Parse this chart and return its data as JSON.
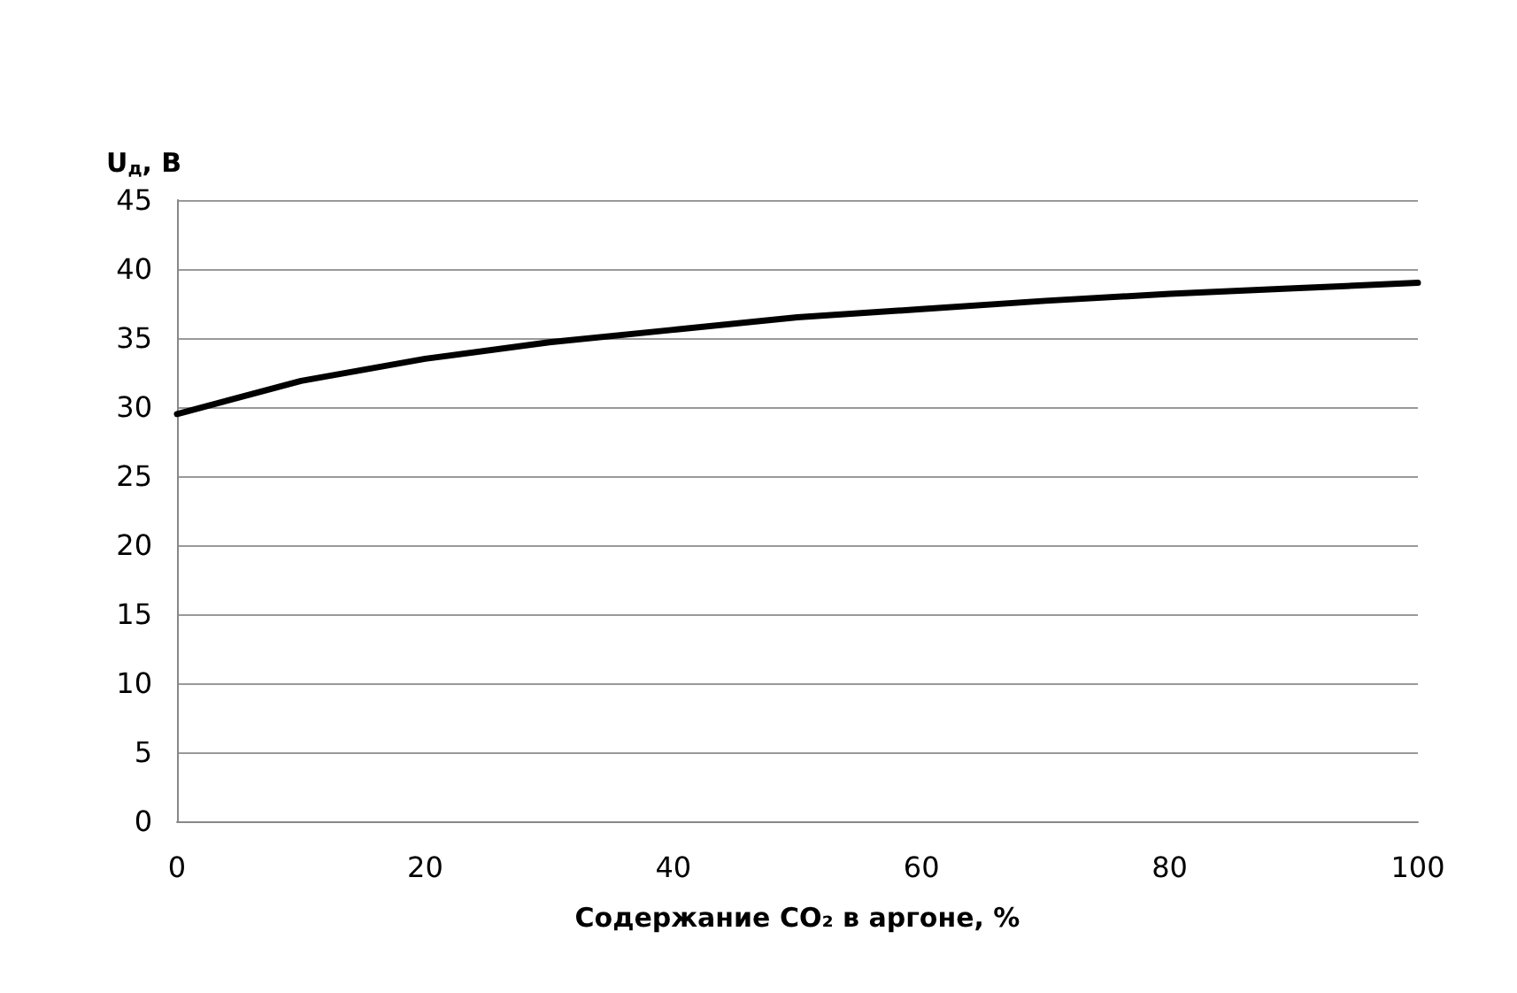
{
  "chart_data": {
    "type": "line",
    "xlabel": "Содержание CO₂ в аргоне, %",
    "ylabel": "U$_{д}$, В",
    "x": [
      0,
      10,
      20,
      30,
      40,
      50,
      60,
      70,
      80,
      90,
      100
    ],
    "series": [
      {
        "color": "#000000",
        "values": [
          29.5,
          31.9,
          33.5,
          34.7,
          35.6,
          36.5,
          37.1,
          37.7,
          38.2,
          38.6,
          39.0
        ]
      }
    ],
    "xlim": [
      0,
      100
    ],
    "xticks": [
      0,
      20,
      40,
      60,
      80,
      100
    ],
    "ylim": [
      0,
      45
    ],
    "yticks": [
      0,
      5,
      10,
      15,
      20,
      25,
      30,
      35,
      40,
      45
    ],
    "grid": "y",
    "marker": "none",
    "line_style": "solid"
  }
}
